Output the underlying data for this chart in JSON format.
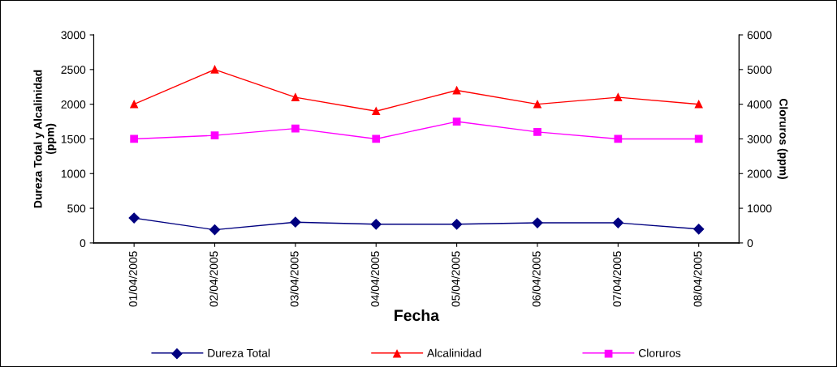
{
  "chart_data": {
    "type": "line",
    "xlabel": "Fecha",
    "ylabel": "Dureza Total y Alcalinidad\n(ppm)",
    "y2label": "Cloruros (ppm)",
    "categories": [
      "01/04/2005",
      "02/04/2005",
      "03/04/2005",
      "04/04/2005",
      "05/04/2005",
      "06/04/2005",
      "07/04/2005",
      "08/04/2005"
    ],
    "series": [
      {
        "name": "Dureza Total",
        "color": "#000080",
        "marker": "diamond",
        "values": [
          360,
          190,
          300,
          270,
          270,
          290,
          290,
          200
        ]
      },
      {
        "name": "Alcalinidad",
        "color": "#ff0000",
        "marker": "triangle",
        "values": [
          2000,
          2500,
          2100,
          1900,
          2200,
          2000,
          2100,
          2000
        ]
      },
      {
        "name": "Cloruros",
        "color": "#ff00ff",
        "marker": "square",
        "axis": "y2",
        "values": [
          3000,
          3100,
          3300,
          3000,
          3500,
          3200,
          3000,
          3000
        ]
      }
    ],
    "ylim": [
      0,
      3000
    ],
    "yticks": [
      0,
      500,
      1000,
      1500,
      2000,
      2500,
      3000
    ],
    "y2lim": [
      0,
      6000
    ],
    "y2ticks": [
      0,
      1000,
      2000,
      3000,
      4000,
      5000,
      6000
    ],
    "grid": false,
    "legend": "bottom",
    "line_style": "solid"
  }
}
